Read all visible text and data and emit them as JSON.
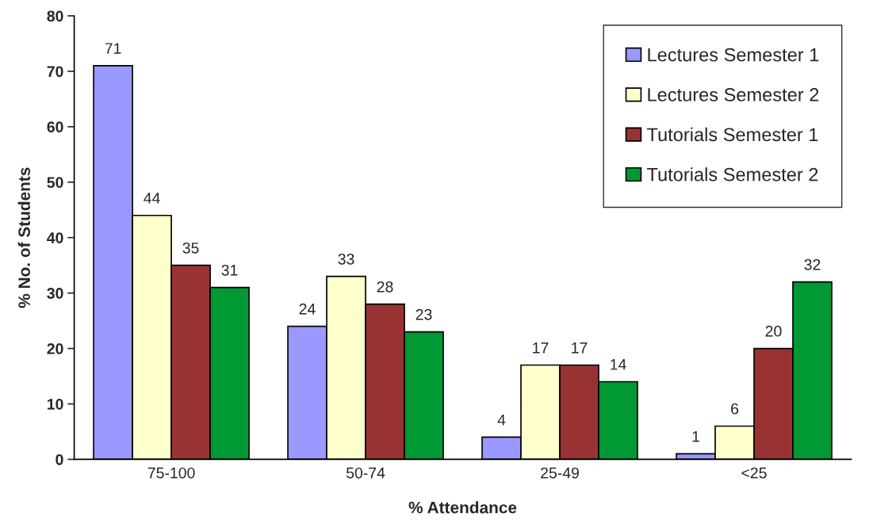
{
  "chart_data": {
    "type": "bar",
    "xlabel": "% Attendance",
    "ylabel": "% No. of Students",
    "categories": [
      "75-100",
      "50-74",
      "25-49",
      "<25"
    ],
    "series": [
      {
        "name": "Lectures Semester 1",
        "color": "#9999ff",
        "values": [
          71,
          24,
          4,
          1
        ]
      },
      {
        "name": "Lectures Semester 2",
        "color": "#ffffcc",
        "values": [
          44,
          33,
          17,
          6
        ]
      },
      {
        "name": "Tutorials Semester 1",
        "color": "#993333",
        "values": [
          35,
          28,
          17,
          20
        ]
      },
      {
        "name": "Tutorials Semester 2",
        "color": "#009933",
        "values": [
          31,
          23,
          14,
          32
        ]
      }
    ],
    "ylim": [
      0,
      80
    ],
    "yticks": [
      0,
      10,
      20,
      30,
      40,
      50,
      60,
      70,
      80
    ],
    "data_labels": true,
    "grid": false,
    "legend": "top right"
  }
}
